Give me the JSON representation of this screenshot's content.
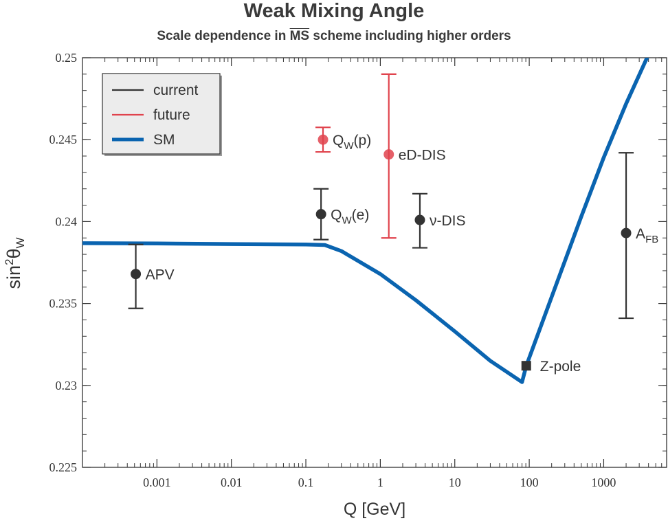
{
  "title": "Weak Mixing Angle",
  "subtitle_prefix": "Scale dependence in",
  "subtitle_scheme": "MS",
  "subtitle_suffix": "scheme including higher orders",
  "colors": {
    "current": "#333333",
    "future": "#e0434d",
    "sm": "#0a64b0"
  },
  "chart_data": {
    "type": "scatter",
    "title": "Weak Mixing Angle",
    "xlabel": "Q [GeV]",
    "ylabel_base": "sin",
    "ylabel_sup": "2",
    "ylabel_theta": "θ",
    "ylabel_sub": "W",
    "xscale": "log",
    "xlim": [
      0.0001,
      7000
    ],
    "ylim": [
      0.225,
      0.25
    ],
    "xticks": [
      {
        "value": 0.001,
        "label": "0.001"
      },
      {
        "value": 0.01,
        "label": "0.01"
      },
      {
        "value": 0.1,
        "label": "0.1"
      },
      {
        "value": 1,
        "label": "1"
      },
      {
        "value": 10,
        "label": "10"
      },
      {
        "value": 100,
        "label": "100"
      },
      {
        "value": 1000,
        "label": "1000"
      }
    ],
    "yticks": [
      {
        "value": 0.225,
        "label": "0.225"
      },
      {
        "value": 0.23,
        "label": "0.23"
      },
      {
        "value": 0.235,
        "label": "0.235"
      },
      {
        "value": 0.24,
        "label": "0.24"
      },
      {
        "value": 0.245,
        "label": "0.245"
      },
      {
        "value": 0.25,
        "label": "0.25"
      }
    ],
    "legend": {
      "location": "top-left",
      "entries": [
        {
          "label": "current",
          "key": "current"
        },
        {
          "label": "future",
          "key": "future"
        },
        {
          "label": "SM",
          "key": "sm"
        }
      ]
    },
    "sm_curve": {
      "name": "SM",
      "x": [
        0.0001,
        0.001,
        0.01,
        0.1,
        0.18,
        0.3,
        1.0,
        3.0,
        10,
        30,
        80,
        91.2,
        200,
        500,
        1000,
        2000,
        4000
      ],
      "y": [
        0.23868,
        0.23866,
        0.23863,
        0.2386,
        0.23857,
        0.2382,
        0.2368,
        0.2352,
        0.2333,
        0.2315,
        0.2302,
        0.2312,
        0.2354,
        0.2403,
        0.2439,
        0.2472,
        0.2502
      ]
    },
    "points": [
      {
        "name": "APV",
        "label": "APV",
        "sub": "",
        "x": 0.00052,
        "y": 0.2368,
        "err_lo": 0.2347,
        "err_hi": 0.2386,
        "group": "current",
        "marker": "circle"
      },
      {
        "name": "Qw(e)",
        "label": "Q",
        "sub": "W",
        "suffix": "(e)",
        "x": 0.16,
        "y": 0.24045,
        "err_lo": 0.2389,
        "err_hi": 0.242,
        "group": "current",
        "marker": "circle"
      },
      {
        "name": "nu-DIS",
        "label": "ν-DIS",
        "sub": "",
        "x": 3.4,
        "y": 0.2401,
        "err_lo": 0.2384,
        "err_hi": 0.2417,
        "group": "current",
        "marker": "circle"
      },
      {
        "name": "Z-pole",
        "label": "Z-pole",
        "sub": "",
        "x": 91.2,
        "y": 0.2312,
        "err_lo": 0.2312,
        "err_hi": 0.2312,
        "group": "current",
        "marker": "square"
      },
      {
        "name": "AFB",
        "label": "A",
        "sub": "FB",
        "x": 2000,
        "y": 0.2393,
        "err_lo": 0.2341,
        "err_hi": 0.2442,
        "group": "current",
        "marker": "circle"
      },
      {
        "name": "Qw(p)",
        "label": "Q",
        "sub": "W",
        "suffix": "(p)",
        "x": 0.17,
        "y": 0.245,
        "err_lo": 0.24425,
        "err_hi": 0.24575,
        "group": "future",
        "marker": "circle"
      },
      {
        "name": "eD-DIS",
        "label": "eD-DIS",
        "sub": "",
        "x": 1.3,
        "y": 0.2441,
        "err_lo": 0.239,
        "err_hi": 0.249,
        "group": "future",
        "marker": "circle"
      }
    ]
  }
}
